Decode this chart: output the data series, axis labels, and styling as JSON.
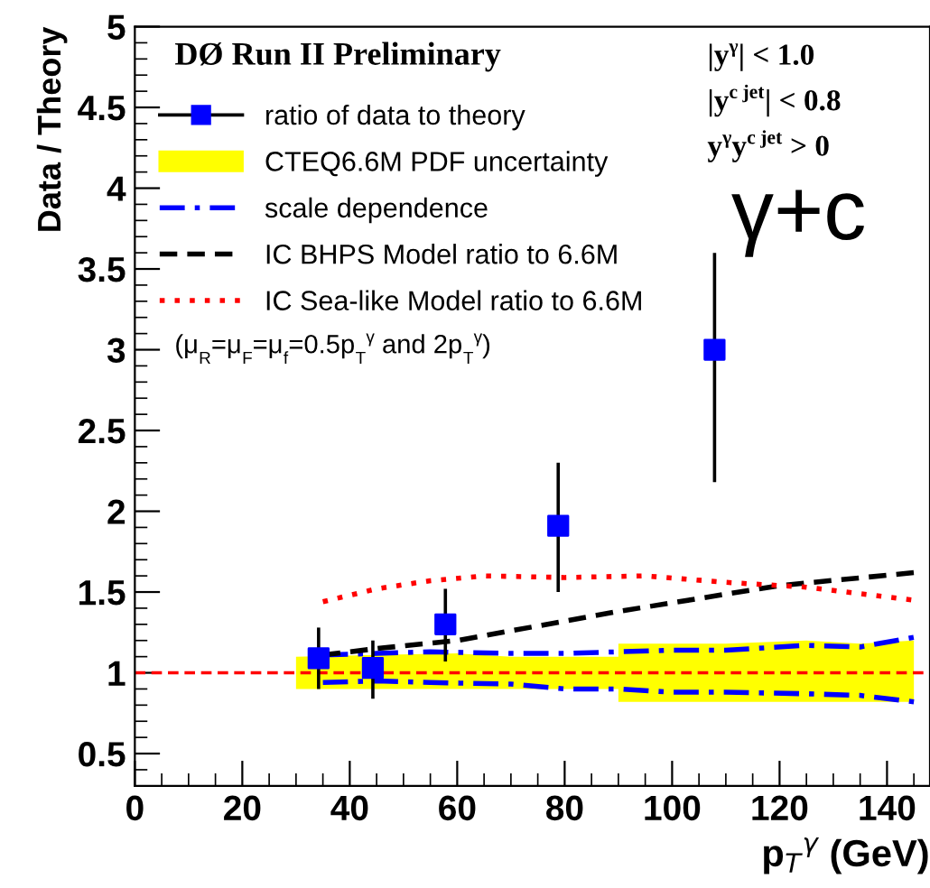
{
  "chart_data": {
    "type": "scatter",
    "ylabel": "Data / Theory",
    "xlabel": "p$_{T}$$^{γ}$ (GeV)",
    "xlim": [
      0,
      148
    ],
    "ylim": [
      0.3,
      5
    ],
    "xticks": [
      0,
      20,
      40,
      60,
      80,
      100,
      120,
      140
    ],
    "yticks": [
      0.5,
      1,
      1.5,
      2,
      2.5,
      3,
      3.5,
      4,
      4.5,
      5
    ],
    "grid": false,
    "legend": "top left",
    "ref_lines": [
      {
        "axis": "y",
        "value": 1,
        "color": "#ff0000",
        "line_style": "dashed"
      }
    ],
    "series": [
      {
        "name": "ratio of data to theory",
        "color": "#0000ff",
        "marker": "square",
        "x": [
          34.2,
          44.3,
          57.8,
          78.8,
          107.9
        ],
        "values": [
          1.09,
          1.03,
          1.3,
          1.91,
          3.0
        ],
        "errors": [
          [
            0.9,
            1.28
          ],
          [
            0.84,
            1.2
          ],
          [
            1.07,
            1.52
          ],
          [
            1.5,
            2.3
          ],
          [
            2.18,
            3.6
          ]
        ]
      },
      {
        "name": "CTEQ6.6M PDF uncertainty",
        "type": "area",
        "color": "#ffff00",
        "x": [
          30,
          45,
          60,
          70,
          90,
          90,
          110,
          125,
          135,
          145
        ],
        "values": [
          null,
          null,
          null,
          null,
          null,
          null,
          null,
          null,
          null,
          null
        ],
        "lower": [
          0.9,
          0.9,
          0.9,
          0.9,
          0.9,
          0.82,
          0.82,
          0.82,
          0.82,
          0.82
        ],
        "upper": [
          1.1,
          1.11,
          1.12,
          1.1,
          1.1,
          1.18,
          1.18,
          1.2,
          1.18,
          1.2
        ]
      },
      {
        "name": "scale dependence",
        "type": "line",
        "color": "#0000ff",
        "line_style": "dashdot",
        "x": [
          35,
          45,
          55,
          70,
          80,
          90,
          100,
          110,
          125,
          135,
          145
        ],
        "values": [
          1.11,
          1.12,
          1.13,
          1.12,
          1.12,
          1.13,
          1.14,
          1.14,
          1.17,
          1.16,
          1.22
        ]
      },
      {
        "type": "line",
        "color": "#0000ff",
        "line_style": "dashdot",
        "x": [
          35,
          45,
          55,
          70,
          80,
          90,
          100,
          110,
          125,
          135,
          145
        ],
        "values": [
          0.94,
          0.95,
          0.94,
          0.93,
          0.9,
          0.9,
          0.88,
          0.88,
          0.87,
          0.86,
          0.82
        ]
      },
      {
        "name": "IC BHPS Model ratio to 6.6M",
        "type": "line",
        "color": "#000000",
        "line_style": "dashed",
        "x": [
          35,
          45,
          60,
          75,
          90,
          105,
          120,
          145
        ],
        "values": [
          1.11,
          1.15,
          1.2,
          1.29,
          1.38,
          1.46,
          1.54,
          1.62
        ]
      },
      {
        "name": "IC Sea-like Model ratio to 6.6M",
        "type": "line",
        "color": "#ff0000",
        "line_style": "dotted",
        "x": [
          35,
          45,
          55,
          65,
          80,
          95,
          110,
          125,
          145
        ],
        "values": [
          1.44,
          1.52,
          1.57,
          1.6,
          1.59,
          1.6,
          1.56,
          1.53,
          1.45
        ]
      }
    ],
    "annotations": [
      "DØ Run II Preliminary",
      "(μ$_{R}$=μ$_{F}$=μ$_{f}$=0.5p$_{T}$$^{γ}$ and 2p$_{T}$$^{γ}$)",
      "|y$^{γ}$| < 1.0",
      "|y$^{c jet}$| < 0.8",
      "y$^{γ}$y$^{c jet}$ > 0",
      "γ+c"
    ]
  }
}
